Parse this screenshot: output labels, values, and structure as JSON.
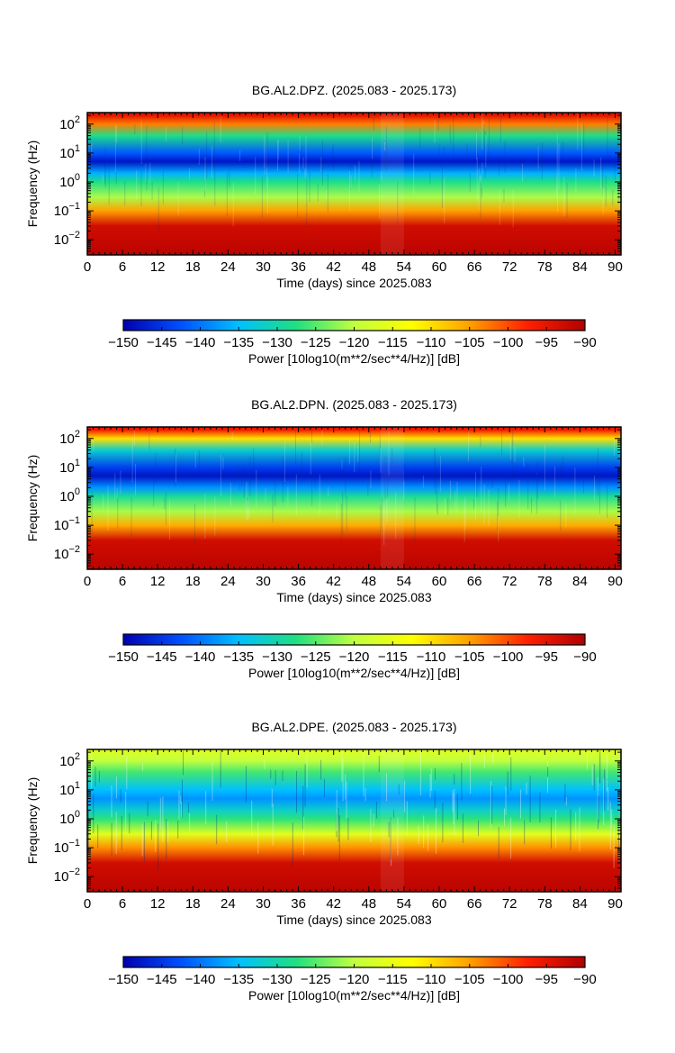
{
  "chart_data": [
    {
      "type": "heatmap",
      "title": "BG.AL2.DPZ. (2025.083 - 2025.173)",
      "xlabel": "Time (days) since 2025.083",
      "ylabel": "Frequency (Hz)",
      "x_ticks": [
        "0",
        "6",
        "12",
        "18",
        "24",
        "30",
        "36",
        "42",
        "48",
        "54",
        "60",
        "66",
        "72",
        "78",
        "84",
        "90"
      ],
      "y_ticks": [
        {
          "base": "10",
          "exp": "2"
        },
        {
          "base": "10",
          "exp": "1"
        },
        {
          "base": "10",
          "exp": "0"
        },
        {
          "base": "10",
          "exp": "−1"
        },
        {
          "base": "10",
          "exp": "−2"
        }
      ],
      "xlim": [
        0,
        91
      ],
      "ylim": [
        0.003,
        250
      ],
      "y_scale": "log",
      "colorbar": {
        "label": "Power [10log10(m**2/sec**4/Hz)] [dB]",
        "ticks": [
          "−150",
          "−145",
          "−140",
          "−135",
          "−130",
          "−125",
          "−120",
          "−115",
          "−110",
          "−105",
          "−100",
          "−95",
          "−90"
        ],
        "range": [
          -150,
          -90
        ],
        "colormap": [
          "#0000b0",
          "#0050ff",
          "#00c0ff",
          "#20e080",
          "#c0ff40",
          "#ffff00",
          "#ffa000",
          "#ff2000",
          "#b00000"
        ]
      },
      "profile": [
        {
          "freq": 200,
          "db": -95
        },
        {
          "freq": 100,
          "db": -103
        },
        {
          "freq": 40,
          "db": -128
        },
        {
          "freq": 10,
          "db": -142
        },
        {
          "freq": 5,
          "db": -148
        },
        {
          "freq": 2,
          "db": -136
        },
        {
          "freq": 1,
          "db": -128
        },
        {
          "freq": 0.3,
          "db": -121
        },
        {
          "freq": 0.1,
          "db": -105
        },
        {
          "freq": 0.03,
          "db": -93
        },
        {
          "freq": 0.003,
          "db": -91
        }
      ]
    },
    {
      "type": "heatmap",
      "title": "BG.AL2.DPN. (2025.083 - 2025.173)",
      "xlabel": "Time (days) since 2025.083",
      "ylabel": "Frequency (Hz)",
      "x_ticks": [
        "0",
        "6",
        "12",
        "18",
        "24",
        "30",
        "36",
        "42",
        "48",
        "54",
        "60",
        "66",
        "72",
        "78",
        "84",
        "90"
      ],
      "y_ticks": [
        {
          "base": "10",
          "exp": "2"
        },
        {
          "base": "10",
          "exp": "1"
        },
        {
          "base": "10",
          "exp": "0"
        },
        {
          "base": "10",
          "exp": "−1"
        },
        {
          "base": "10",
          "exp": "−2"
        }
      ],
      "xlim": [
        0,
        91
      ],
      "ylim": [
        0.003,
        250
      ],
      "y_scale": "log",
      "colorbar": {
        "label": "Power [10log10(m**2/sec**4/Hz)] [dB]",
        "ticks": [
          "−150",
          "−145",
          "−140",
          "−135",
          "−130",
          "−125",
          "−120",
          "−115",
          "−110",
          "−105",
          "−100",
          "−95",
          "−90"
        ],
        "range": [
          -150,
          -90
        ],
        "colormap": [
          "#0000b0",
          "#0050ff",
          "#00c0ff",
          "#20e080",
          "#c0ff40",
          "#ffff00",
          "#ffa000",
          "#ff2000",
          "#b00000"
        ]
      },
      "profile": [
        {
          "freq": 200,
          "db": -96
        },
        {
          "freq": 100,
          "db": -110
        },
        {
          "freq": 40,
          "db": -132
        },
        {
          "freq": 10,
          "db": -144
        },
        {
          "freq": 5,
          "db": -148
        },
        {
          "freq": 2,
          "db": -138
        },
        {
          "freq": 1,
          "db": -129
        },
        {
          "freq": 0.3,
          "db": -121
        },
        {
          "freq": 0.1,
          "db": -106
        },
        {
          "freq": 0.03,
          "db": -93
        },
        {
          "freq": 0.003,
          "db": -91
        }
      ]
    },
    {
      "type": "heatmap",
      "title": "BG.AL2.DPE. (2025.083 - 2025.173)",
      "xlabel": "Time (days) since 2025.083",
      "ylabel": "Frequency (Hz)",
      "x_ticks": [
        "0",
        "6",
        "12",
        "18",
        "24",
        "30",
        "36",
        "42",
        "48",
        "54",
        "60",
        "66",
        "72",
        "78",
        "84",
        "90"
      ],
      "y_ticks": [
        {
          "base": "10",
          "exp": "2"
        },
        {
          "base": "10",
          "exp": "1"
        },
        {
          "base": "10",
          "exp": "0"
        },
        {
          "base": "10",
          "exp": "−1"
        },
        {
          "base": "10",
          "exp": "−2"
        }
      ],
      "xlim": [
        0,
        91
      ],
      "ylim": [
        0.003,
        250
      ],
      "y_scale": "log",
      "colorbar": {
        "label": "Power [10log10(m**2/sec**4/Hz)] [dB]",
        "ticks": [
          "−150",
          "−145",
          "−140",
          "−135",
          "−130",
          "−125",
          "−120",
          "−115",
          "−110",
          "−105",
          "−100",
          "−95",
          "−90"
        ],
        "range": [
          -150,
          -90
        ],
        "colormap": [
          "#0000b0",
          "#0050ff",
          "#00c0ff",
          "#20e080",
          "#c0ff40",
          "#ffff00",
          "#ffa000",
          "#ff2000",
          "#b00000"
        ]
      },
      "profile": [
        {
          "freq": 200,
          "db": -117
        },
        {
          "freq": 100,
          "db": -120
        },
        {
          "freq": 40,
          "db": -126
        },
        {
          "freq": 10,
          "db": -135
        },
        {
          "freq": 5,
          "db": -138
        },
        {
          "freq": 2,
          "db": -132
        },
        {
          "freq": 1,
          "db": -127
        },
        {
          "freq": 0.3,
          "db": -116
        },
        {
          "freq": 0.1,
          "db": -104
        },
        {
          "freq": 0.03,
          "db": -93
        },
        {
          "freq": 0.003,
          "db": -91
        }
      ]
    }
  ]
}
